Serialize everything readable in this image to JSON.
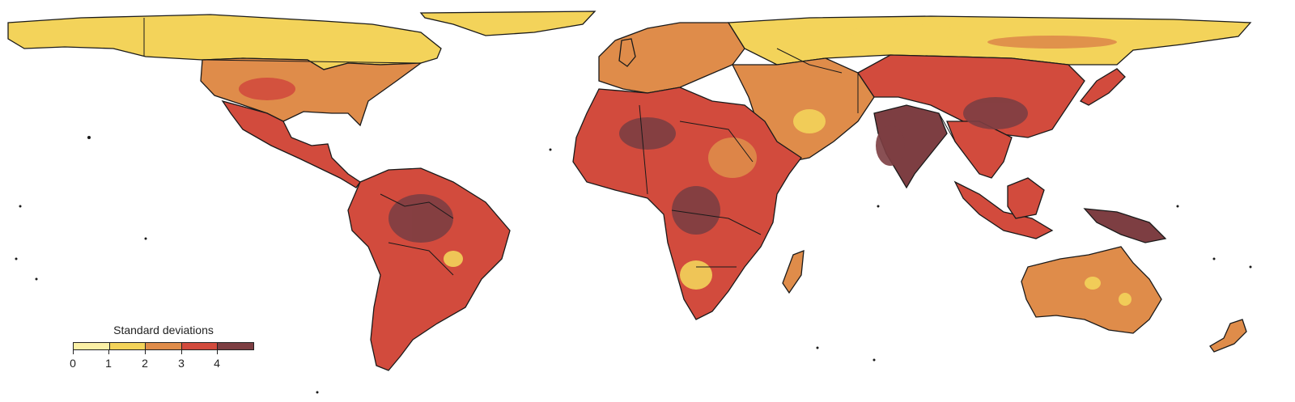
{
  "legend": {
    "title": "Standard deviations",
    "colors": [
      "#fbf0a6",
      "#f3d35a",
      "#df8c4a",
      "#d24b3d",
      "#7d3e42"
    ],
    "ticks": [
      "0",
      "1",
      "2",
      "3",
      "4"
    ]
  },
  "map_style": {
    "ocean": "#ffffff",
    "border": "#1a1a1a"
  }
}
